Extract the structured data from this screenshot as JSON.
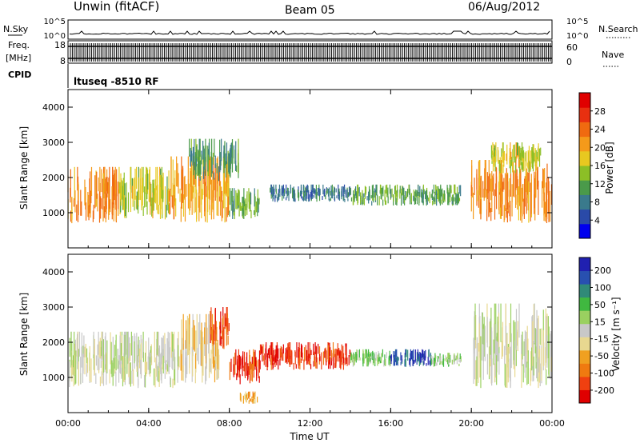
{
  "header": {
    "title": "Unwin (fitACF)",
    "beam": "Beam 05",
    "date": "06/Aug/2012"
  },
  "strips": {
    "nsky_label": "N.Sky",
    "nsky_ticks": [
      "10^5",
      "10^0"
    ],
    "nsearch_label": "N.Search",
    "nsearch_ticks": [
      "10^5",
      "10^0"
    ],
    "freq_label_line1": "Freq.",
    "freq_label_line2": "[MHz]",
    "freq_ticks": [
      "18",
      "8"
    ],
    "nave_label": "Nave",
    "nave_ticks": [
      "60",
      "0"
    ],
    "cpid_label": "CPID",
    "cpid_text": "ltuseq -8510 RF"
  },
  "colors": {
    "power_scale": [
      "#0000ee",
      "#2a4aa8",
      "#3a7a8c",
      "#4a9a4a",
      "#8cbf26",
      "#e8c820",
      "#f59a1a",
      "#f06a10",
      "#e83010",
      "#e00000"
    ],
    "velocity_scale": [
      "#e00000",
      "#f04010",
      "#f07a10",
      "#f0a020",
      "#e8d890",
      "#c8c8c8",
      "#9ad060",
      "#40b840",
      "#308a78",
      "#2850b0",
      "#2020b0"
    ]
  },
  "chart_data": [
    {
      "type": "heatmap",
      "name": "Power",
      "ylabel": "Slant Range [km]",
      "y_ticks": [
        "1000",
        "2000",
        "3000",
        "4000"
      ],
      "ylim": [
        0,
        4500
      ],
      "colorbar_label": "Power [dB]",
      "colorbar_ticks": [
        "4",
        "8",
        "12",
        "16",
        "20",
        "24",
        "28"
      ],
      "colorbar_range": [
        0,
        32
      ],
      "regions": [
        {
          "t0": 0.0,
          "t1": 2.5,
          "r0": 700,
          "r1": 2300,
          "value": 22
        },
        {
          "t0": 2.5,
          "t1": 5.0,
          "r0": 800,
          "r1": 2300,
          "value": 16
        },
        {
          "t0": 5.0,
          "t1": 8.0,
          "r0": 700,
          "r1": 2600,
          "value": 20
        },
        {
          "t0": 6.0,
          "t1": 8.5,
          "r0": 1900,
          "r1": 3100,
          "value": 10
        },
        {
          "t0": 8.0,
          "t1": 9.5,
          "r0": 800,
          "r1": 1700,
          "value": 12
        },
        {
          "t0": 10.0,
          "t1": 14.0,
          "r0": 1300,
          "r1": 1800,
          "value": 8
        },
        {
          "t0": 14.0,
          "t1": 19.5,
          "r0": 1200,
          "r1": 1800,
          "value": 12
        },
        {
          "t0": 20.0,
          "t1": 24.0,
          "r0": 700,
          "r1": 2500,
          "value": 22
        },
        {
          "t0": 21.0,
          "t1": 23.5,
          "r0": 2100,
          "r1": 3000,
          "value": 16
        }
      ]
    },
    {
      "type": "heatmap",
      "name": "Velocity",
      "ylabel": "Slant Range [km]",
      "y_ticks": [
        "1000",
        "2000",
        "3000",
        "4000"
      ],
      "ylim": [
        0,
        4500
      ],
      "colorbar_label": "Velocity [m s⁻¹]",
      "colorbar_ticks": [
        "200",
        "100",
        "50",
        "15",
        "-15",
        "-50",
        "-100",
        "-200"
      ],
      "colorbar_range": [
        -250,
        250
      ],
      "regions": [
        {
          "t0": 0.0,
          "t1": 5.5,
          "r0": 700,
          "r1": 2300,
          "value": 0
        },
        {
          "t0": 5.5,
          "t1": 7.5,
          "r0": 800,
          "r1": 2800,
          "value": -40
        },
        {
          "t0": 7.0,
          "t1": 8.0,
          "r0": 1800,
          "r1": 3000,
          "value": -170
        },
        {
          "t0": 8.0,
          "t1": 9.5,
          "r0": 800,
          "r1": 1800,
          "value": -190
        },
        {
          "t0": 8.5,
          "t1": 9.4,
          "r0": 250,
          "r1": 600,
          "value": -80
        },
        {
          "t0": 9.5,
          "t1": 14.0,
          "r0": 1200,
          "r1": 2000,
          "value": -200
        },
        {
          "t0": 14.0,
          "t1": 16.0,
          "r0": 1300,
          "r1": 1800,
          "value": 60
        },
        {
          "t0": 16.0,
          "t1": 18.0,
          "r0": 1300,
          "r1": 1800,
          "value": 180
        },
        {
          "t0": 18.0,
          "t1": 19.5,
          "r0": 1300,
          "r1": 1700,
          "value": 40
        },
        {
          "t0": 20.0,
          "t1": 24.0,
          "r0": 700,
          "r1": 3100,
          "value": 0
        }
      ]
    }
  ],
  "x_axis": {
    "label": "Time UT",
    "ticks": [
      "00:00",
      "04:00",
      "08:00",
      "12:00",
      "16:00",
      "20:00",
      "00:00"
    ],
    "range_hours": [
      0,
      24
    ]
  }
}
